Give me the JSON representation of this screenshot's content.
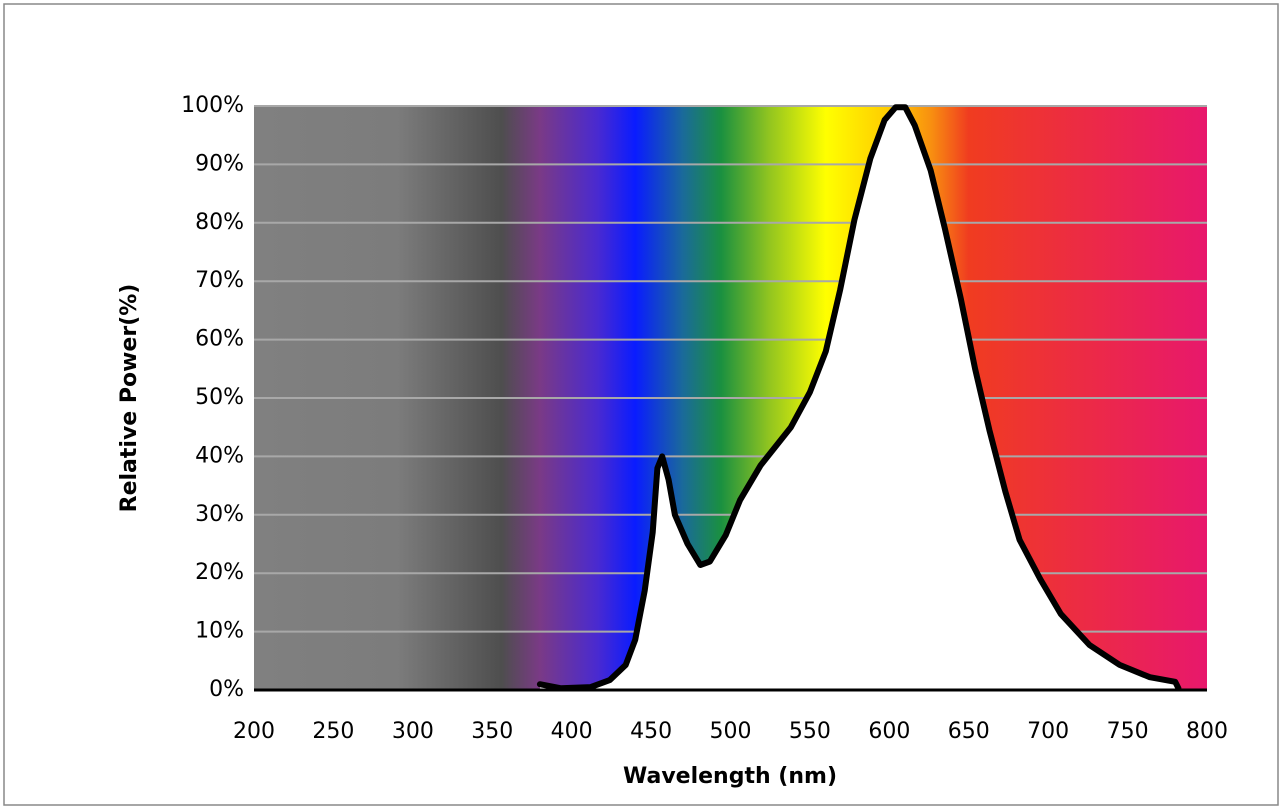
{
  "chart_data": {
    "type": "line",
    "xlabel": "Wavelength (nm)",
    "ylabel": "Relative Power(%)",
    "x": [
      380,
      393,
      412,
      424,
      434,
      440,
      446,
      451,
      454,
      457,
      461,
      465,
      473,
      481,
      487,
      497,
      506,
      519,
      538,
      550,
      560,
      569,
      578,
      588,
      597,
      604,
      610,
      616,
      626,
      635,
      645,
      654,
      663,
      673,
      682,
      695,
      708,
      726,
      745,
      764,
      780,
      782
    ],
    "series": [
      {
        "color": "#000000",
        "values": [
          1,
          0.3,
          0.5,
          1.7,
          4.3,
          8.6,
          17,
          27,
          38,
          40,
          36,
          30,
          25,
          21.4,
          22,
          26.5,
          32.5,
          38.5,
          45,
          51,
          58,
          68.5,
          80.5,
          91,
          97.6,
          99.8,
          99.8,
          96.7,
          89,
          79,
          67,
          55,
          44.5,
          34,
          25.7,
          19,
          13,
          7.7,
          4.3,
          2.2,
          1.4,
          0.3
        ]
      }
    ],
    "xlim": [
      200,
      800
    ],
    "xticks": [
      200,
      250,
      300,
      350,
      400,
      450,
      500,
      550,
      600,
      650,
      700,
      750,
      800
    ],
    "ylim": [
      0,
      100
    ],
    "yticks": [
      {
        "value": 0,
        "label": "0%"
      },
      {
        "value": 10,
        "label": "10%"
      },
      {
        "value": 20,
        "label": "20%"
      },
      {
        "value": 30,
        "label": "30%"
      },
      {
        "value": 40,
        "label": "40%"
      },
      {
        "value": 50,
        "label": "50%"
      },
      {
        "value": 60,
        "label": "60%"
      },
      {
        "value": 70,
        "label": "70%"
      },
      {
        "value": 80,
        "label": "80%"
      },
      {
        "value": 90,
        "label": "90%"
      },
      {
        "value": 100,
        "label": "100%"
      }
    ],
    "grid": true,
    "fill_under": "#ffffff"
  }
}
